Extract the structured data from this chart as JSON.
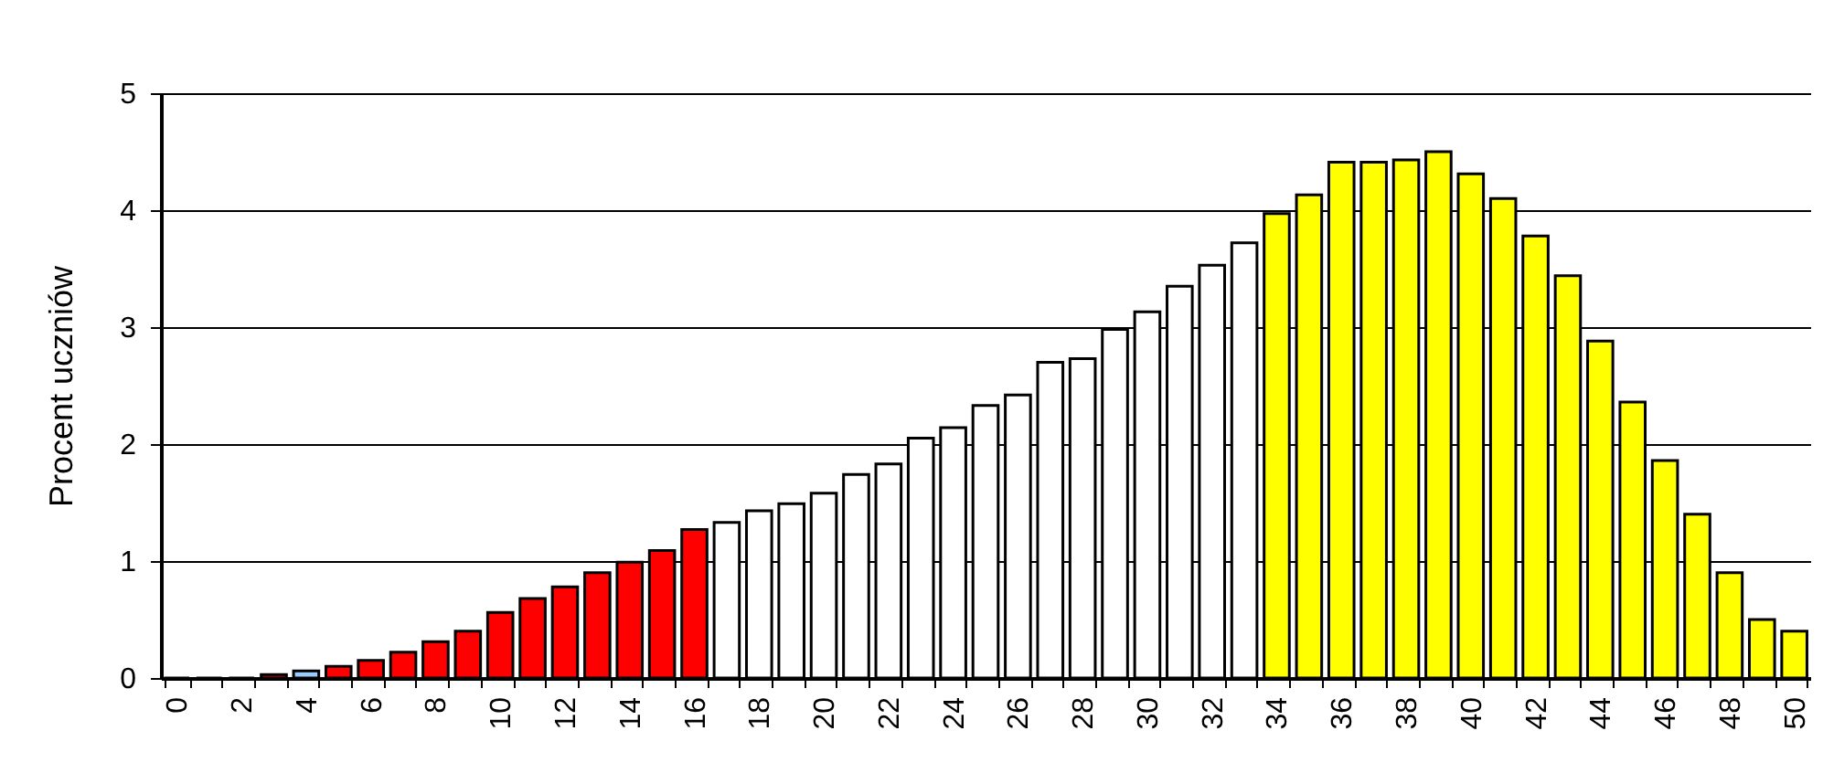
{
  "chart_data": {
    "type": "bar",
    "ylabel": "Procent uczniów",
    "categories": [
      "0",
      null,
      "2",
      null,
      "4",
      null,
      "6",
      null,
      "8",
      null,
      "10",
      null,
      "12",
      null,
      "14",
      null,
      "16",
      null,
      "18",
      null,
      "20",
      null,
      "22",
      null,
      "24",
      null,
      "26",
      null,
      "28",
      null,
      "30",
      null,
      "32",
      null,
      "34",
      null,
      "36",
      null,
      "38",
      null,
      "40",
      null,
      "42",
      null,
      "44",
      null,
      "46",
      null,
      "48",
      null,
      "50"
    ],
    "values": [
      0,
      0,
      0,
      0.03,
      0.06,
      0.1,
      0.15,
      0.22,
      0.31,
      0.4,
      0.56,
      0.68,
      0.78,
      0.9,
      0.99,
      1.09,
      1.27,
      1.33,
      1.43,
      1.49,
      1.58,
      1.74,
      1.83,
      2.05,
      2.14,
      2.33,
      2.42,
      2.7,
      2.73,
      2.98,
      3.13,
      3.35,
      3.53,
      3.72,
      3.97,
      4.13,
      4.41,
      4.41,
      4.43,
      4.5,
      4.31,
      4.1,
      3.78,
      3.44,
      2.88,
      2.36,
      1.86,
      1.4,
      0.9,
      0.5,
      0.4
    ],
    "colors": [
      "#000000",
      "#000000",
      "#000000",
      "#ff0000",
      "#99ccff",
      "#ff0000",
      "#ff0000",
      "#ff0000",
      "#ff0000",
      "#ff0000",
      "#ff0000",
      "#ff0000",
      "#ff0000",
      "#ff0000",
      "#ff0000",
      "#ff0000",
      "#ff0000",
      "#ffffff",
      "#ffffff",
      "#ffffff",
      "#ffffff",
      "#ffffff",
      "#ffffff",
      "#ffffff",
      "#ffffff",
      "#ffffff",
      "#ffffff",
      "#ffffff",
      "#ffffff",
      "#ffffff",
      "#ffffff",
      "#ffffff",
      "#ffffff",
      "#ffffff",
      "#ffff00",
      "#ffff00",
      "#ffff00",
      "#ffff00",
      "#ffff00",
      "#ffff00",
      "#ffff00",
      "#ffff00",
      "#ffff00",
      "#ffff00",
      "#ffff00",
      "#ffff00",
      "#ffff00",
      "#ffff00",
      "#ffff00",
      "#ffff00",
      "#ffff00"
    ],
    "ylim": [
      0,
      5
    ],
    "yticks": [
      0,
      1,
      2,
      3,
      4,
      5
    ],
    "grid": "y"
  }
}
